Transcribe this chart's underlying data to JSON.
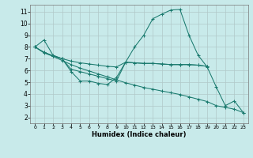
{
  "xlabel": "Humidex (Indice chaleur)",
  "background_color": "#c8eaea",
  "grid_color": "#b0c8c8",
  "line_color": "#1a7a6e",
  "xlim": [
    -0.5,
    23.5
  ],
  "ylim": [
    1.5,
    11.6
  ],
  "xticks": [
    0,
    1,
    2,
    3,
    4,
    5,
    6,
    7,
    8,
    9,
    10,
    11,
    12,
    13,
    14,
    15,
    16,
    17,
    18,
    19,
    20,
    21,
    22,
    23
  ],
  "yticks": [
    2,
    3,
    4,
    5,
    6,
    7,
    8,
    9,
    10,
    11
  ],
  "lines": [
    {
      "x": [
        0,
        1,
        2,
        3,
        4,
        5,
        6,
        7,
        8,
        9,
        10,
        11,
        12,
        13,
        14,
        15,
        16,
        17,
        18,
        19,
        20,
        21,
        22,
        23
      ],
      "y": [
        8.0,
        8.6,
        7.3,
        7.0,
        5.9,
        5.1,
        5.1,
        4.9,
        4.8,
        5.4,
        6.7,
        8.0,
        9.0,
        10.4,
        10.8,
        11.15,
        11.2,
        9.0,
        7.3,
        6.3,
        4.6,
        3.0,
        3.4,
        2.4
      ]
    },
    {
      "x": [
        0,
        1,
        2,
        3,
        4,
        5,
        6,
        7,
        8,
        9,
        10,
        11,
        12,
        13,
        14,
        15,
        16,
        17,
        18,
        19
      ],
      "y": [
        8.0,
        7.55,
        7.25,
        7.0,
        6.8,
        6.65,
        6.55,
        6.45,
        6.35,
        6.3,
        6.7,
        6.65,
        6.6,
        6.6,
        6.55,
        6.5,
        6.5,
        6.5,
        6.45,
        6.35
      ]
    },
    {
      "x": [
        0,
        1,
        2,
        3,
        4,
        5,
        6,
        7,
        8,
        9,
        10,
        11,
        12,
        13,
        14,
        15,
        16,
        17,
        18,
        19
      ],
      "y": [
        8.0,
        7.55,
        7.25,
        7.0,
        6.1,
        5.9,
        5.7,
        5.5,
        5.3,
        5.1,
        6.7,
        6.65,
        6.6,
        6.6,
        6.55,
        6.5,
        6.5,
        6.5,
        6.45,
        6.35
      ]
    },
    {
      "x": [
        0,
        1,
        2,
        3,
        4,
        5,
        6,
        7,
        8,
        9,
        10,
        11,
        12,
        13,
        14,
        15,
        16,
        17,
        18,
        19,
        20,
        21,
        22,
        23
      ],
      "y": [
        8.0,
        7.5,
        7.2,
        6.85,
        6.5,
        6.2,
        5.95,
        5.7,
        5.45,
        5.2,
        4.95,
        4.75,
        4.55,
        4.4,
        4.25,
        4.1,
        3.95,
        3.75,
        3.55,
        3.35,
        3.0,
        2.85,
        2.7,
        2.4
      ]
    }
  ]
}
